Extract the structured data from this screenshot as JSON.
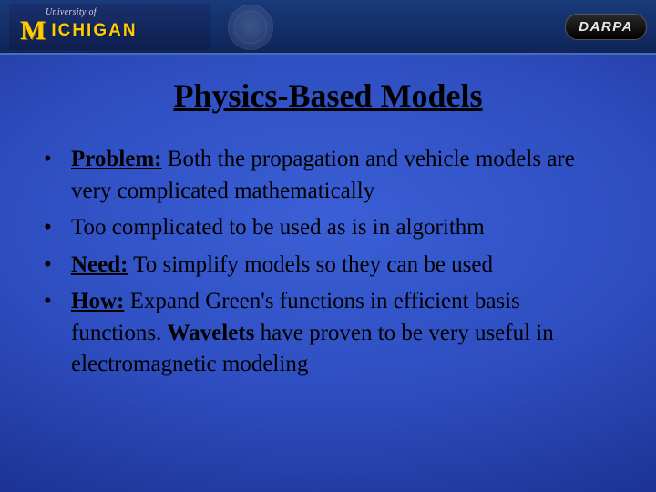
{
  "header": {
    "umich_prefix": "University of",
    "umich_m": "M",
    "umich_name": "ICHIGAN",
    "darpa": "DARPA"
  },
  "title": "Physics-Based Models",
  "bullets": [
    {
      "label": "Problem:",
      "text": " Both the propagation and vehicle models are very complicated mathematically"
    },
    {
      "label": "",
      "text": "Too complicated to be used as is in algorithm"
    },
    {
      "label": "Need:",
      "text": " To simplify models so they can be used"
    },
    {
      "label": "How:",
      "text_before": " Expand Green's functions in efficient basis functions. ",
      "bold_word": "Wavelets",
      "text_after": " have proven to be very useful in electromagnetic modeling"
    }
  ],
  "colors": {
    "umich_yellow": "#ffcb05",
    "bg_center": "#3b5fd6",
    "bg_edge": "#0d1a5c",
    "text": "#000000"
  }
}
